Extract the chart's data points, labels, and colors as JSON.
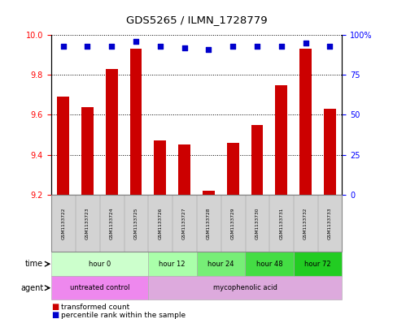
{
  "title": "GDS5265 / ILMN_1728779",
  "samples": [
    "GSM1133722",
    "GSM1133723",
    "GSM1133724",
    "GSM1133725",
    "GSM1133726",
    "GSM1133727",
    "GSM1133728",
    "GSM1133729",
    "GSM1133730",
    "GSM1133731",
    "GSM1133732",
    "GSM1133733"
  ],
  "transformed_counts": [
    9.69,
    9.64,
    9.83,
    9.93,
    9.47,
    9.45,
    9.22,
    9.46,
    9.55,
    9.75,
    9.93,
    9.63
  ],
  "percentile_ranks": [
    93,
    93,
    93,
    96,
    93,
    92,
    91,
    93,
    93,
    93,
    95,
    93
  ],
  "ylim_left": [
    9.2,
    10.0
  ],
  "ylim_right": [
    0,
    100
  ],
  "yticks_left": [
    9.2,
    9.4,
    9.6,
    9.8,
    10.0
  ],
  "yticks_right": [
    0,
    25,
    50,
    75,
    100
  ],
  "yticklabels_right": [
    "0",
    "25",
    "50",
    "75",
    "100%"
  ],
  "bar_color": "#cc0000",
  "dot_color": "#0000cc",
  "bar_bottom": 9.2,
  "time_groups": [
    {
      "label": "hour 0",
      "start": 0,
      "end": 4,
      "color": "#ccffcc"
    },
    {
      "label": "hour 12",
      "start": 4,
      "end": 6,
      "color": "#aaffaa"
    },
    {
      "label": "hour 24",
      "start": 6,
      "end": 8,
      "color": "#77ee77"
    },
    {
      "label": "hour 48",
      "start": 8,
      "end": 10,
      "color": "#44dd44"
    },
    {
      "label": "hour 72",
      "start": 10,
      "end": 12,
      "color": "#22cc22"
    }
  ],
  "agent_groups": [
    {
      "label": "untreated control",
      "start": 0,
      "end": 4,
      "color": "#ee88ee"
    },
    {
      "label": "mycophenolic acid",
      "start": 4,
      "end": 12,
      "color": "#ddaadd"
    }
  ],
  "legend_red_label": "transformed count",
  "legend_blue_label": "percentile rank within the sample"
}
